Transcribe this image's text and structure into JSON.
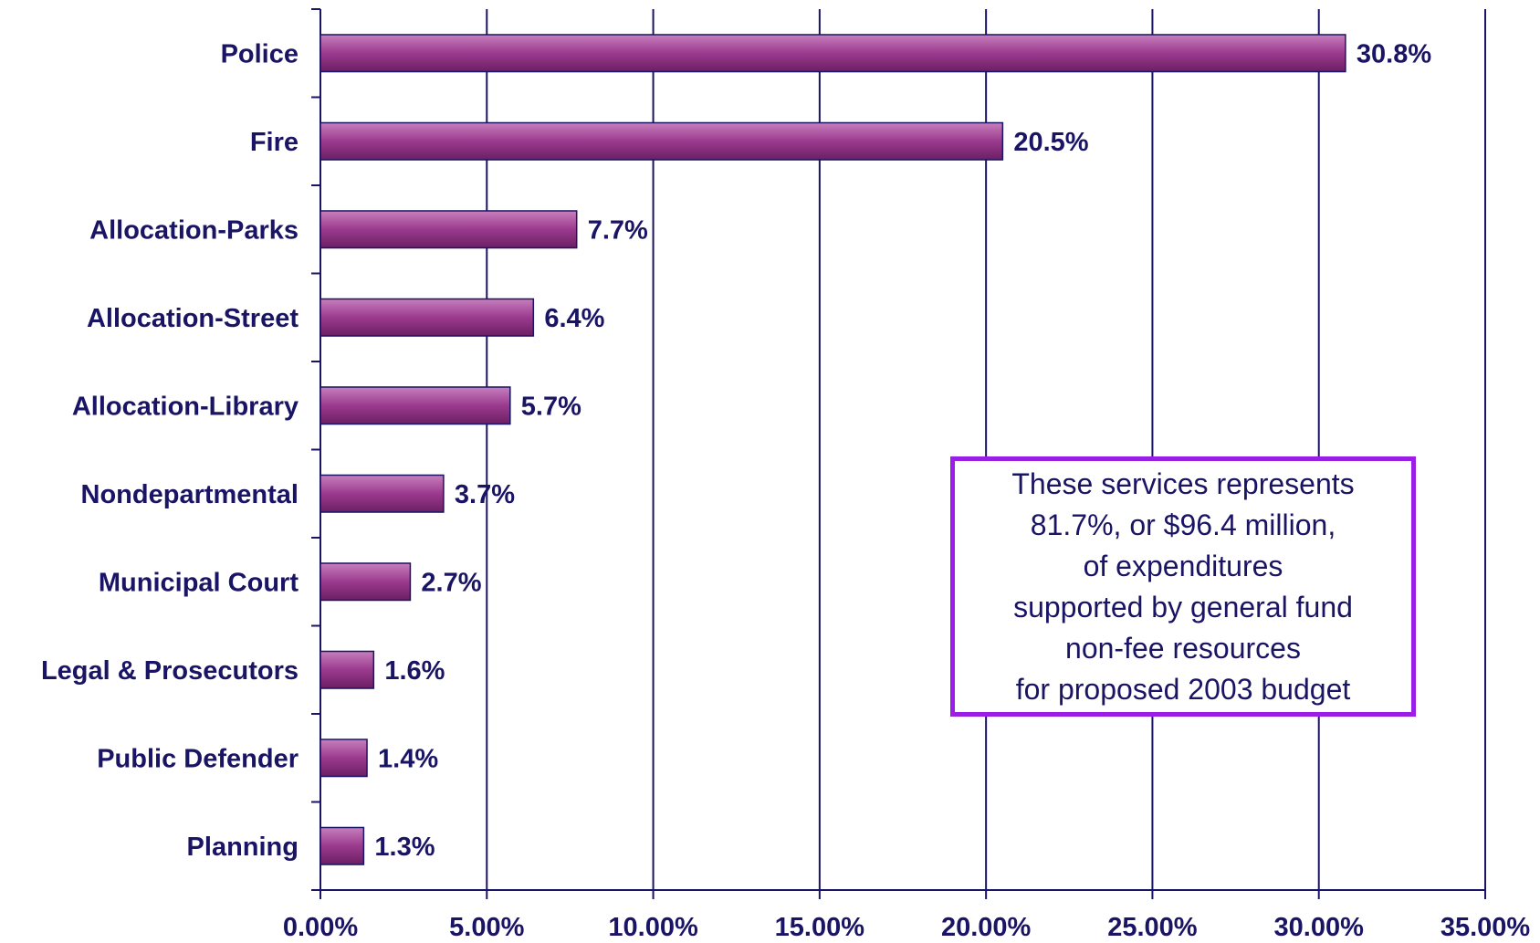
{
  "chart_data": {
    "type": "bar",
    "orientation": "horizontal",
    "categories": [
      "Police",
      "Fire",
      "Allocation-Parks",
      "Allocation-Street",
      "Allocation-Library",
      "Nondepartmental",
      "Municipal Court",
      "Legal & Prosecutors",
      "Public Defender",
      "Planning"
    ],
    "values": [
      30.8,
      20.5,
      7.7,
      6.4,
      5.7,
      3.7,
      2.7,
      1.6,
      1.4,
      1.3
    ],
    "value_labels": [
      "30.8%",
      "20.5%",
      "7.7%",
      "6.4%",
      "5.7%",
      "3.7%",
      "2.7%",
      "1.6%",
      "1.4%",
      "1.3%"
    ],
    "xlim": [
      0,
      35
    ],
    "xticks": [
      0,
      5,
      10,
      15,
      20,
      25,
      30,
      35
    ],
    "xtick_labels": [
      "0.00%",
      "5.00%",
      "10.00%",
      "15.00%",
      "20.00%",
      "25.00%",
      "30.00%",
      "35.00%"
    ],
    "grid": "vertical",
    "annotation": {
      "lines": [
        "These services represents",
        "81.7%, or $96.4 million,",
        "of expenditures",
        "supported by general fund",
        "non-fee resources",
        "for proposed 2003 budget"
      ]
    },
    "colors": {
      "bar": "#9b3a8e",
      "bar_light": "#c77fbd",
      "bar_dark": "#6b1f63",
      "text": "#1a1464",
      "grid": "#1a1464",
      "annotation_border": "#9b1ee6"
    }
  }
}
